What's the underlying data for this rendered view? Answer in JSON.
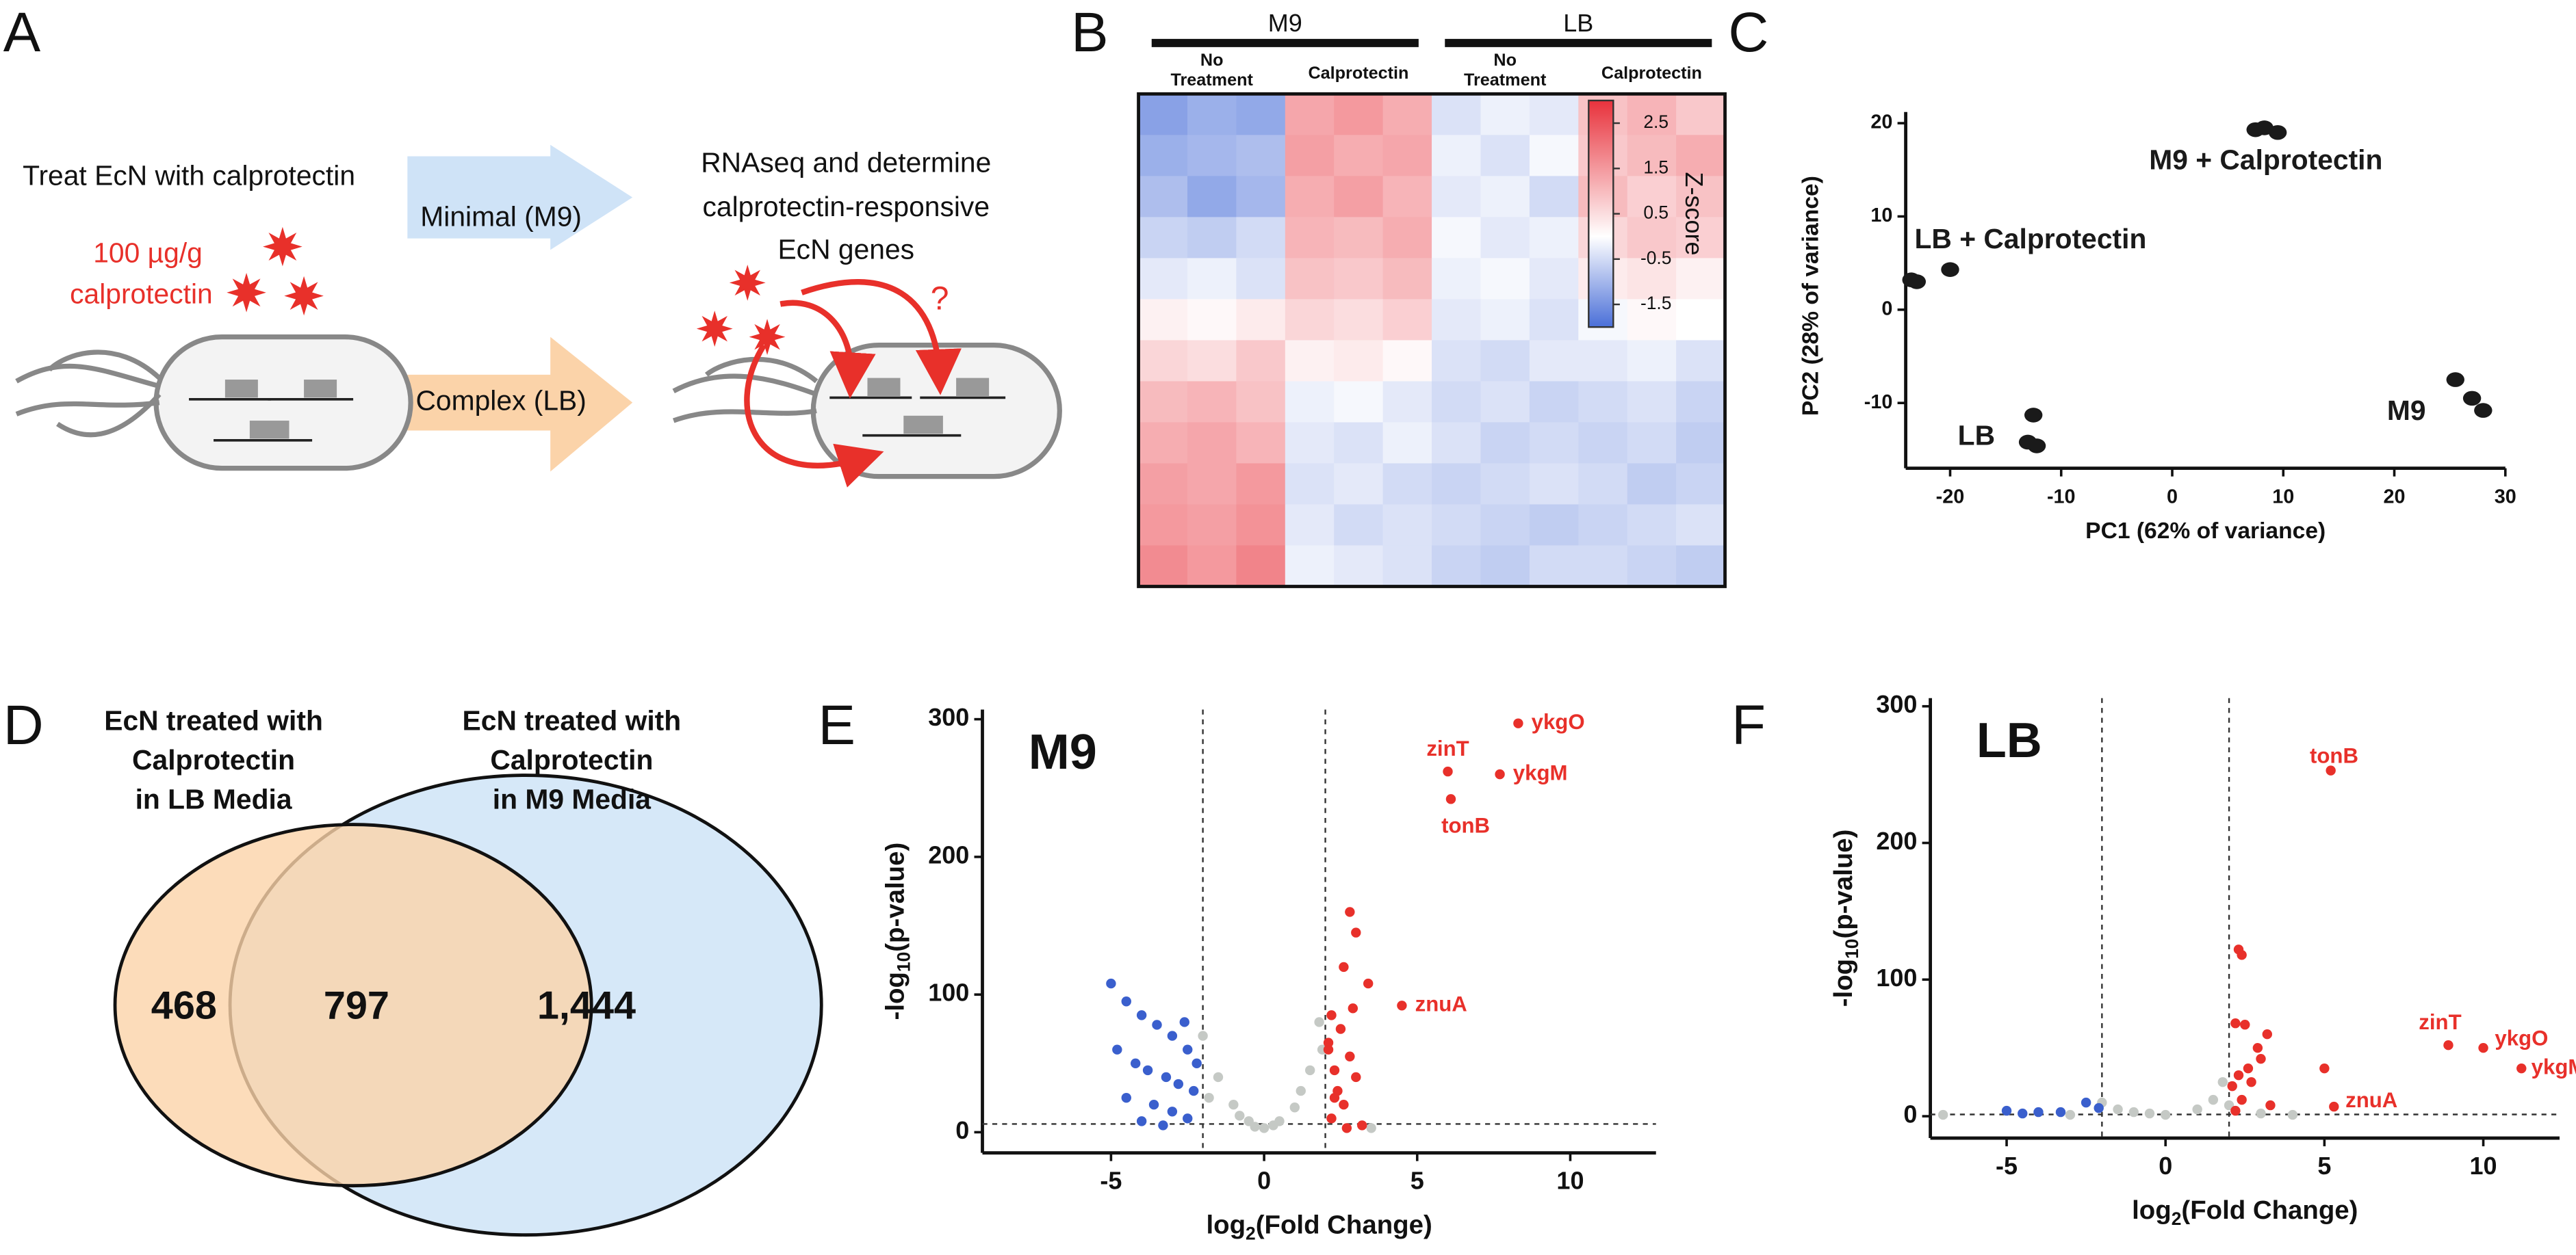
{
  "panel_labels": [
    "A",
    "B",
    "C",
    "D",
    "E",
    "F"
  ],
  "diagram": {
    "left_text": "Treat EcN with calprotectin",
    "dose_lines": [
      "100 µg/g",
      "calprotectin"
    ],
    "arrows": [
      "Minimal (M9)",
      "Complex (LB)"
    ],
    "right_text_lines": [
      "RNAseq and determine",
      "calprotectin-responsive",
      "EcN genes"
    ],
    "question": "?"
  },
  "chart_data": [
    {
      "type": "heatmap",
      "groups": [
        "M9",
        "LB"
      ],
      "columns": [
        [
          "No",
          "Treatment"
        ],
        [
          "Calprotectin"
        ],
        [
          "No",
          "Treatment"
        ],
        [
          "Calprotectin"
        ]
      ],
      "colorbar_label": "Z-score",
      "zlim": [
        -2,
        3
      ],
      "zticks": [
        2.5,
        1.5,
        0.5,
        -0.5,
        -1.5
      ],
      "colors": [
        "#4a6fd8",
        "#ffffff",
        "#e8323c"
      ],
      "values": [
        [
          -1.3,
          -1.1,
          -1.2,
          1.3,
          1.5,
          1.2,
          -0.4,
          -0.2,
          -0.3,
          0.9,
          1.1,
          0.8
        ],
        [
          -1.1,
          -1.0,
          -0.9,
          1.4,
          1.2,
          1.3,
          -0.2,
          -0.4,
          -0.1,
          0.8,
          1.0,
          1.2
        ],
        [
          -0.9,
          -1.2,
          -1.0,
          1.2,
          1.4,
          1.1,
          -0.3,
          -0.2,
          -0.5,
          1.0,
          0.7,
          0.9
        ],
        [
          -0.6,
          -0.7,
          -0.5,
          1.1,
          1.0,
          1.2,
          -0.1,
          -0.3,
          -0.2,
          0.6,
          0.8,
          0.7
        ],
        [
          -0.3,
          -0.2,
          -0.4,
          0.9,
          0.8,
          1.0,
          -0.2,
          -0.1,
          -0.3,
          0.3,
          0.4,
          0.2
        ],
        [
          0.2,
          0.1,
          0.3,
          0.6,
          0.5,
          0.7,
          -0.3,
          -0.2,
          -0.4,
          -0.1,
          0.1,
          0.0
        ],
        [
          0.6,
          0.5,
          0.8,
          0.2,
          0.3,
          0.1,
          -0.4,
          -0.5,
          -0.3,
          -0.3,
          -0.2,
          -0.4
        ],
        [
          1.0,
          1.1,
          0.9,
          -0.2,
          -0.1,
          -0.3,
          -0.5,
          -0.4,
          -0.6,
          -0.5,
          -0.4,
          -0.6
        ],
        [
          1.2,
          1.3,
          1.1,
          -0.3,
          -0.4,
          -0.2,
          -0.4,
          -0.6,
          -0.5,
          -0.6,
          -0.5,
          -0.7
        ],
        [
          1.4,
          1.3,
          1.5,
          -0.4,
          -0.3,
          -0.5,
          -0.6,
          -0.5,
          -0.4,
          -0.5,
          -0.7,
          -0.6
        ],
        [
          1.5,
          1.4,
          1.6,
          -0.3,
          -0.5,
          -0.4,
          -0.5,
          -0.6,
          -0.7,
          -0.6,
          -0.5,
          -0.4
        ],
        [
          1.7,
          1.5,
          1.8,
          -0.2,
          -0.3,
          -0.4,
          -0.6,
          -0.7,
          -0.5,
          -0.5,
          -0.6,
          -0.7
        ]
      ]
    },
    {
      "type": "scatter",
      "x_label": "PC1 (62% of variance)",
      "y_label": "PC2 (28% of variance)",
      "xlim": [
        -24,
        30
      ],
      "xticks": [
        -20,
        -10,
        0,
        10,
        20,
        30
      ],
      "ylim": [
        -17,
        21.2
      ],
      "yticks": [
        20,
        10,
        0,
        -10
      ],
      "series": [
        {
          "name": "M9 + Calprotectin",
          "color": "#1a1a1a",
          "x": [
            7.5,
            8.3,
            9.5
          ],
          "values": [
            19.3,
            19.5,
            19.0
          ]
        },
        {
          "name": "LB + Calprotectin",
          "color": "#1a1a1a",
          "x": [
            -23.5,
            -23,
            -20
          ],
          "values": [
            3.2,
            3.0,
            4.3
          ]
        },
        {
          "name": "LB",
          "color": "#1a1a1a",
          "x": [
            -12.5,
            -13,
            -12.2
          ],
          "values": [
            -11.3,
            -14.2,
            -14.6
          ]
        },
        {
          "name": "M9",
          "color": "#1a1a1a",
          "x": [
            25.5,
            27,
            28
          ],
          "values": [
            -7.5,
            -9.5,
            -10.8
          ]
        }
      ]
    },
    {
      "type": "venn",
      "sets": [
        [
          "EcN treated with",
          "Calprotectin",
          "in LB Media"
        ],
        [
          "EcN treated with",
          "Calprotectin",
          "in M9 Media"
        ]
      ],
      "colors": [
        "#fbd3a9",
        "#d6e8f8"
      ],
      "values": [
        468,
        797,
        1444
      ],
      "value_labels": [
        "468",
        "797",
        "1,444"
      ]
    },
    {
      "type": "volcano",
      "title": "M9",
      "x_label_parts": [
        "log",
        "2",
        "(Fold Change)"
      ],
      "y_label_parts": [
        "-log",
        "10",
        "(p-value)"
      ],
      "xlim": [
        -9.2,
        12.8
      ],
      "xticks": [
        -5,
        0,
        5,
        10
      ],
      "ylim": [
        -15,
        307
      ],
      "yticks": [
        0,
        100,
        200,
        300
      ],
      "thresholds_x": [
        -2,
        2
      ],
      "threshold_y": 6,
      "series": [
        {
          "color": "#c5c9c5",
          "x": [
            -2,
            -1.5,
            -1,
            -0.5,
            0,
            0.5,
            1,
            1.5,
            1.8,
            -1.8,
            1.2,
            -0.8,
            0.3,
            -0.3,
            3.5,
            1.9
          ],
          "values": [
            70,
            40,
            20,
            8,
            3,
            8,
            18,
            45,
            80,
            25,
            30,
            12,
            5,
            4,
            3,
            60
          ]
        },
        {
          "color": "#3a5fcd",
          "x": [
            -5,
            -4.5,
            -4,
            -3.5,
            -3,
            -2.5,
            -4.8,
            -4.2,
            -3.8,
            -3.2,
            -2.8,
            -2.3,
            -4.5,
            -3.6,
            -3,
            -2.5,
            -4,
            -3.3,
            -2.2,
            -2.6
          ],
          "values": [
            108,
            95,
            85,
            78,
            70,
            60,
            60,
            50,
            45,
            40,
            35,
            30,
            25,
            20,
            15,
            10,
            8,
            5,
            50,
            80
          ]
        },
        {
          "color": "#e8302a",
          "x": [
            2.8,
            3,
            2.6,
            3.4,
            2.2,
            2.5,
            2.1,
            2.8,
            2.3,
            3,
            2.4,
            2.6,
            2.2,
            3.2,
            2.7,
            2.1,
            2.9,
            2.3
          ],
          "values": [
            160,
            145,
            120,
            108,
            85,
            75,
            60,
            55,
            45,
            40,
            30,
            20,
            10,
            5,
            3,
            65,
            90,
            25
          ]
        },
        {
          "color": "#e8302a",
          "x": [
            6,
            8.3,
            7.7,
            6.1,
            4.5
          ],
          "values": [
            262,
            297,
            260,
            242,
            92
          ],
          "point_labels": [
            "zinT",
            "ykgO",
            "ykgM",
            "tonB",
            "znuA"
          ]
        }
      ]
    },
    {
      "type": "volcano",
      "title": "LB",
      "x_label_parts": [
        "log",
        "2",
        "(Fold Change)"
      ],
      "y_label_parts": [
        "-log",
        "10",
        "(p-value)"
      ],
      "xlim": [
        -7.4,
        12.4
      ],
      "xticks": [
        -5,
        0,
        5,
        10
      ],
      "ylim": [
        -16,
        306
      ],
      "yticks": [
        0,
        100,
        200,
        300
      ],
      "thresholds_x": [
        -2,
        2
      ],
      "threshold_y": 1.3,
      "series": [
        {
          "color": "#c5c9c5",
          "x": [
            -7,
            -2,
            -1.5,
            -1,
            0,
            1,
            1.5,
            1.8,
            2,
            -0.5,
            3,
            4,
            -3
          ],
          "values": [
            1,
            10,
            5,
            3,
            1,
            5,
            12,
            25,
            8,
            2,
            2,
            1,
            1
          ]
        },
        {
          "color": "#3a5fcd",
          "x": [
            -2.5,
            -4,
            -4.5,
            -3.3,
            -5,
            -2.1
          ],
          "values": [
            10,
            3,
            2,
            3,
            4,
            6
          ]
        },
        {
          "color": "#e8302a",
          "x": [
            2.3,
            2.4,
            2.5,
            2.2,
            3.2,
            2.9,
            3,
            2.6,
            2.3,
            2.1,
            2.4,
            3.3,
            2.2,
            5,
            2.7
          ],
          "values": [
            122,
            118,
            67,
            68,
            60,
            50,
            42,
            35,
            30,
            22,
            12,
            8,
            4,
            35,
            25
          ]
        },
        {
          "color": "#e8302a",
          "x": [
            5.2,
            8.9,
            10,
            11.2,
            5.3
          ],
          "values": [
            253,
            52,
            50,
            35,
            7
          ],
          "point_labels": [
            "tonB",
            "zinT",
            "ykgO",
            "ykgM",
            "znuA"
          ]
        }
      ]
    }
  ]
}
